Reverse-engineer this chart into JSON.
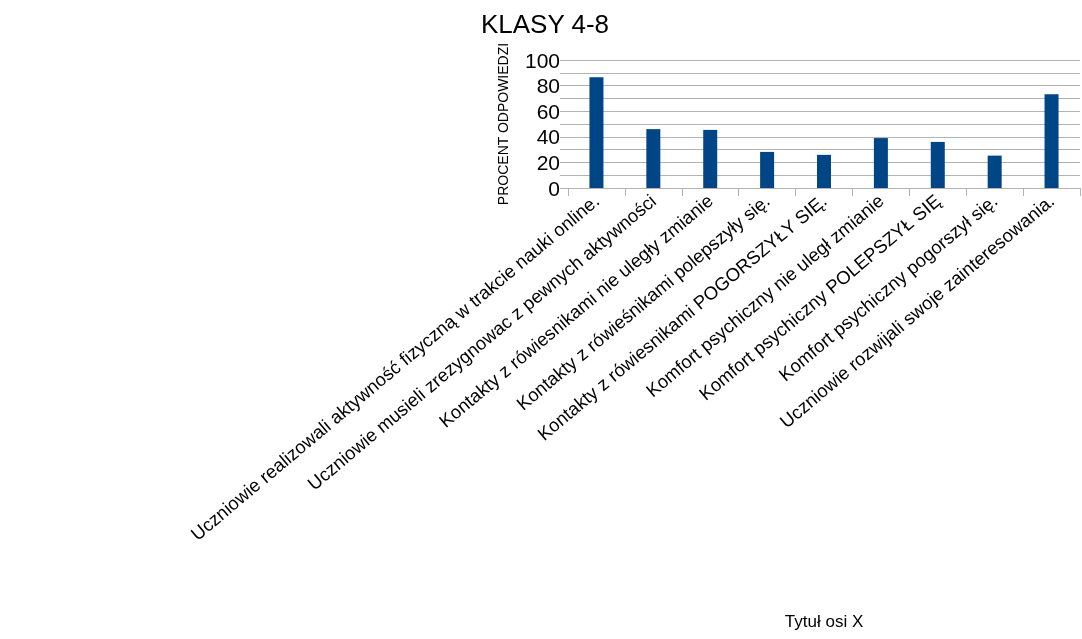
{
  "chart_data": {
    "type": "bar",
    "title": "KLASY 4-8",
    "xlabel": "Tytuł osi X",
    "ylabel": "PROCENT ODPOWIEDZI",
    "categories": [
      "Uczniowie realizowali aktywność fizyczną w trakcie nauki online.",
      "Uczniowie musieli zrezygnowac z pewnych aktywności",
      "Kontakty z rówiesnikami nie uległy zmianie",
      "Kontakty z rówieśnikami polepszyły się.",
      "Kontakty z rówiesnikami POGORSZYŁY SIĘ.",
      "Komfort psychiczny nie uległ zmianie",
      "Komfort psychiczny POLEPSZYŁ SIĘ",
      "Komfort psychiczny pogorszył się.",
      "Uczniowie rozwijali swoje zainteresowania."
    ],
    "values": [
      86.5,
      46,
      45.4,
      28.2,
      25.9,
      39,
      36,
      25.3,
      73.3
    ],
    "color": "#004586",
    "ylim": [
      0,
      100
    ],
    "yticks": [
      0,
      {
        "value": 10,
        "label": null
      },
      20,
      {
        "value": 30,
        "label": null
      },
      40,
      {
        "value": 50,
        "label": null
      },
      60,
      {
        "value": 70,
        "label": null
      },
      80,
      {
        "value": 90,
        "label": null
      },
      100
    ],
    "grid": "y"
  }
}
